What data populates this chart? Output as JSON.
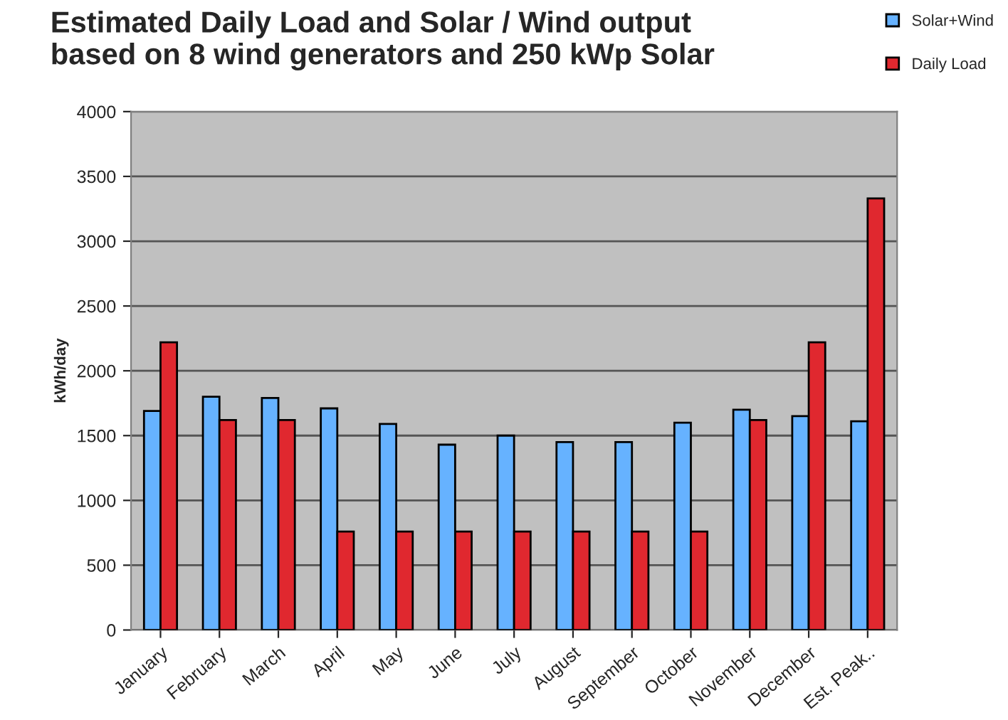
{
  "chart_data": {
    "type": "bar",
    "title": "Estimated Daily Load and Solar / Wind output\nbased on 8 wind generators and 250 kWp Solar",
    "ylabel": "kWh/day",
    "categories": [
      "January",
      "February",
      "March",
      "April",
      "May",
      "June",
      "July",
      "August",
      "September",
      "October",
      "November",
      "December",
      "Est. Peak.."
    ],
    "series": [
      {
        "name": "Solar+Wind",
        "color": "#66b2ff",
        "values": [
          1690,
          1800,
          1790,
          1710,
          1590,
          1430,
          1500,
          1450,
          1450,
          1600,
          1700,
          1650,
          1610
        ]
      },
      {
        "name": "Daily Load",
        "color": "#e0282f",
        "values": [
          2220,
          1620,
          1620,
          760,
          760,
          760,
          760,
          760,
          760,
          760,
          1620,
          2220,
          3330
        ]
      }
    ],
    "ylim": [
      0,
      4000
    ],
    "yticks": [
      0,
      500,
      1000,
      1500,
      2000,
      2500,
      3000,
      3500,
      4000
    ],
    "grid": "y",
    "legend": "top right"
  }
}
